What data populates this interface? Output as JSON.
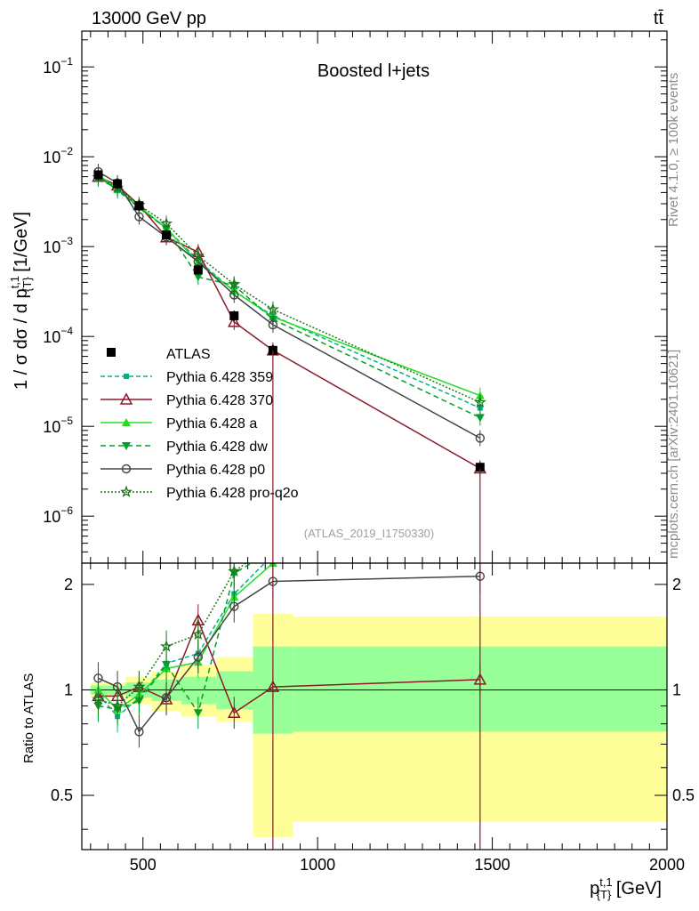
{
  "header": {
    "left": "13000 GeV pp",
    "right": "tt̄"
  },
  "side_labels": {
    "rivet": "Rivet 4.1.0, ≥ 100k events",
    "mcplots": "mcplots.cern.ch [arXiv:2401.10621]"
  },
  "chart_data": {
    "type": "line",
    "title": "Boosted l+jets",
    "analysis_label": "(ATLAS_2019_I1750330)",
    "xlabel": "p_{T}^{t,1} [GeV]",
    "ylabel": "1 / σ dσ / d p_{T}^{t,1} [1/GeV]",
    "ratio_ylabel": "Ratio to ATLAS",
    "xlim": [
      325,
      2000
    ],
    "ylim": [
      3e-07,
      0.25
    ],
    "ratio_ylim": [
      0.35,
      2.3
    ],
    "yscale": "log",
    "x_ticks": [
      500,
      1000,
      1500,
      2000
    ],
    "ratio_ticks": [
      "0.5",
      "1",
      "2"
    ],
    "legend_position": "middle-left",
    "bins": [
      {
        "lo": 350,
        "hi": 400
      },
      {
        "lo": 400,
        "hi": 450
      },
      {
        "lo": 450,
        "hi": 525
      },
      {
        "lo": 525,
        "hi": 610
      },
      {
        "lo": 610,
        "hi": 710
      },
      {
        "lo": 710,
        "hi": 815
      },
      {
        "lo": 815,
        "hi": 930
      },
      {
        "lo": 930,
        "hi": 2000
      }
    ],
    "data": {
      "name": "ATLAS",
      "x": [
        372,
        427,
        489,
        567,
        658,
        761,
        872,
        1465
      ],
      "y": [
        0.0063,
        0.005,
        0.00285,
        0.00135,
        0.00055,
        0.00017,
        7e-05,
        3.5e-06
      ],
      "ratio_band_stat": [
        [
          0.97,
          1.03
        ],
        [
          0.97,
          1.03
        ],
        [
          0.95,
          1.05
        ],
        [
          0.93,
          1.07
        ],
        [
          0.91,
          1.09
        ],
        [
          0.88,
          1.13
        ],
        [
          0.75,
          1.33
        ],
        [
          0.76,
          1.33
        ]
      ],
      "ratio_band_total": [
        [
          0.95,
          1.05
        ],
        [
          0.95,
          1.05
        ],
        [
          0.91,
          1.09
        ],
        [
          0.87,
          1.13
        ],
        [
          0.84,
          1.18
        ],
        [
          0.81,
          1.24
        ],
        [
          0.38,
          1.65
        ],
        [
          0.42,
          1.62
        ]
      ]
    },
    "series": [
      {
        "name": "Pythia 6.428 359",
        "color": "#00b386",
        "dash": "5,3",
        "marker": "square",
        "y": [
          0.0061,
          0.0042,
          0.0027,
          0.0016,
          0.0007,
          0.00032,
          0.00017,
          1.6e-05
        ],
        "ratio": [
          0.97,
          0.84,
          0.95,
          1.19,
          1.27,
          1.88,
          2.43,
          4.6
        ]
      },
      {
        "name": "Pythia 6.428 370",
        "color": "#8b1a2b",
        "dash": "",
        "marker": "triangle-open",
        "y": [
          0.006,
          0.0048,
          0.0029,
          0.00127,
          0.00087,
          0.000145,
          7e-05,
          3.4e-06
        ],
        "ratio": [
          0.96,
          0.96,
          1.02,
          0.94,
          1.58,
          0.86,
          1.02,
          1.07
        ]
      },
      {
        "name": "Pythia 6.428 a",
        "color": "#22dd22",
        "dash": "",
        "marker": "triangle",
        "y": [
          0.0063,
          0.0044,
          0.0028,
          0.0016,
          0.00066,
          0.00032,
          0.000165,
          2.2e-05
        ],
        "ratio": [
          1.0,
          0.88,
          0.97,
          1.15,
          1.2,
          1.84,
          2.3,
          6.3
        ]
      },
      {
        "name": "Pythia 6.428 dw",
        "color": "#00a02a",
        "dash": "6,4",
        "marker": "triangle-down",
        "y": [
          0.0057,
          0.0044,
          0.0027,
          0.0016,
          0.00046,
          0.00037,
          0.000155,
          1.25e-05
        ],
        "ratio": [
          0.9,
          0.88,
          0.93,
          1.18,
          0.86,
          2.15,
          2.5,
          3.6
        ]
      },
      {
        "name": "Pythia 6.428 p0",
        "color": "#444444",
        "dash": "",
        "marker": "circle-open",
        "y": [
          0.0068,
          0.0051,
          0.00215,
          0.00128,
          0.00068,
          0.00029,
          0.000135,
          7.4e-06
        ],
        "ratio": [
          1.08,
          1.02,
          0.76,
          0.95,
          1.24,
          1.73,
          2.04,
          2.11
        ]
      },
      {
        "name": "Pythia 6.428 pro-q2o",
        "color": "#1a7a1a",
        "dash": "2,2",
        "marker": "star",
        "y": [
          0.0059,
          0.0045,
          0.0029,
          0.0018,
          0.00079,
          0.00038,
          0.0002,
          1.85e-05
        ],
        "ratio": [
          0.94,
          0.9,
          1.02,
          1.33,
          1.44,
          2.18,
          2.6,
          5.3
        ]
      }
    ]
  }
}
